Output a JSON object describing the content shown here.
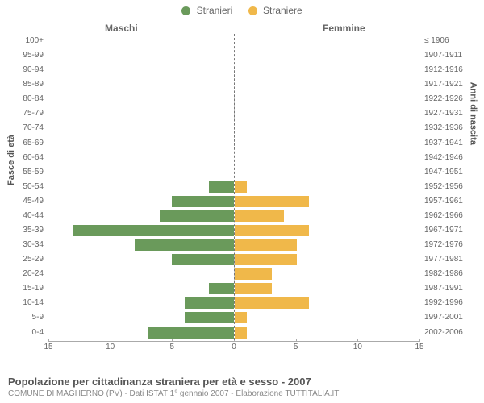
{
  "legend": {
    "male": {
      "label": "Stranieri",
      "color": "#6a9a5b"
    },
    "female": {
      "label": "Straniere",
      "color": "#f0b84a"
    }
  },
  "headers": {
    "male": "Maschi",
    "female": "Femmine"
  },
  "yaxis": {
    "left": "Fasce di età",
    "right": "Anni di nascita"
  },
  "axis": {
    "max": 15,
    "ticks_left": [
      15,
      10,
      5,
      0
    ],
    "ticks_right": [
      0,
      5,
      10,
      15
    ]
  },
  "colors": {
    "bar_male": "#6a9a5b",
    "bar_female": "#f0b84a",
    "background": "#ffffff",
    "text": "#666666",
    "divider": "#777777"
  },
  "rows": [
    {
      "age": "100+",
      "birth": "≤ 1906",
      "m": 0,
      "f": 0
    },
    {
      "age": "95-99",
      "birth": "1907-1911",
      "m": 0,
      "f": 0
    },
    {
      "age": "90-94",
      "birth": "1912-1916",
      "m": 0,
      "f": 0
    },
    {
      "age": "85-89",
      "birth": "1917-1921",
      "m": 0,
      "f": 0
    },
    {
      "age": "80-84",
      "birth": "1922-1926",
      "m": 0,
      "f": 0
    },
    {
      "age": "75-79",
      "birth": "1927-1931",
      "m": 0,
      "f": 0
    },
    {
      "age": "70-74",
      "birth": "1932-1936",
      "m": 0,
      "f": 0
    },
    {
      "age": "65-69",
      "birth": "1937-1941",
      "m": 0,
      "f": 0
    },
    {
      "age": "60-64",
      "birth": "1942-1946",
      "m": 0,
      "f": 0
    },
    {
      "age": "55-59",
      "birth": "1947-1951",
      "m": 0,
      "f": 0
    },
    {
      "age": "50-54",
      "birth": "1952-1956",
      "m": 2,
      "f": 1
    },
    {
      "age": "45-49",
      "birth": "1957-1961",
      "m": 5,
      "f": 6
    },
    {
      "age": "40-44",
      "birth": "1962-1966",
      "m": 6,
      "f": 4
    },
    {
      "age": "35-39",
      "birth": "1967-1971",
      "m": 13,
      "f": 6
    },
    {
      "age": "30-34",
      "birth": "1972-1976",
      "m": 8,
      "f": 5
    },
    {
      "age": "25-29",
      "birth": "1977-1981",
      "m": 5,
      "f": 5
    },
    {
      "age": "20-24",
      "birth": "1982-1986",
      "m": 0,
      "f": 3
    },
    {
      "age": "15-19",
      "birth": "1987-1991",
      "m": 2,
      "f": 3
    },
    {
      "age": "10-14",
      "birth": "1992-1996",
      "m": 4,
      "f": 6
    },
    {
      "age": "5-9",
      "birth": "1997-2001",
      "m": 4,
      "f": 1
    },
    {
      "age": "0-4",
      "birth": "2002-2006",
      "m": 7,
      "f": 1
    }
  ],
  "footer": {
    "title": "Popolazione per cittadinanza straniera per età e sesso - 2007",
    "subtitle": "COMUNE DI MAGHERNO (PV) - Dati ISTAT 1° gennaio 2007 - Elaborazione TUTTITALIA.IT"
  }
}
